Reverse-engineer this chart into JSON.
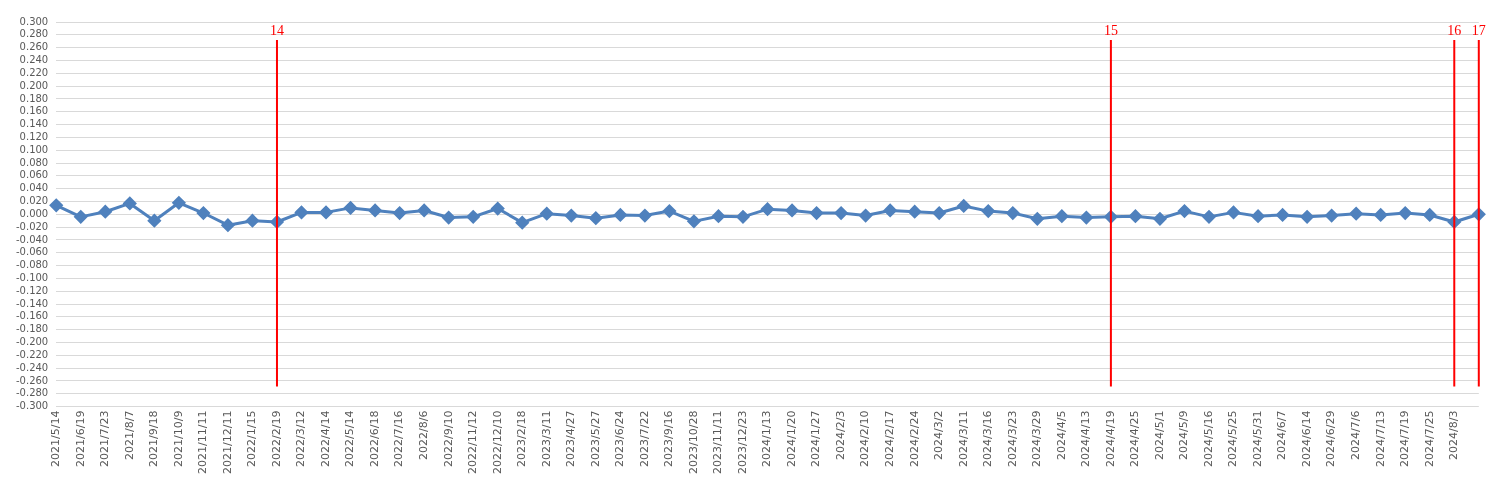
{
  "chart_data": {
    "type": "line",
    "categories": [
      "2021/5/14",
      "2021/6/19",
      "2021/7/23",
      "2021/8/7",
      "2021/9/18",
      "2021/10/9",
      "2021/11/11",
      "2021/12/11",
      "2022/1/15",
      "2022/2/19",
      "2022/3/12",
      "2022/4/14",
      "2022/5/14",
      "2022/6/18",
      "2022/7/16",
      "2022/8/6",
      "2022/9/10",
      "2022/11/12",
      "2022/12/10",
      "2023/2/18",
      "2023/3/11",
      "2023/4/27",
      "2023/5/27",
      "2023/6/24",
      "2023/7/22",
      "2023/9/16",
      "2023/10/28",
      "2023/11/11",
      "2023/12/23",
      "2024/1/13",
      "2024/1/20",
      "2024/1/27",
      "2024/2/3",
      "2024/2/10",
      "2024/2/17",
      "2024/2/24",
      "2024/3/2",
      "2024/3/11",
      "2024/3/16",
      "2024/3/23",
      "2024/3/29",
      "2024/4/5",
      "2024/4/13",
      "2024/4/19",
      "2024/4/25",
      "2024/5/1",
      "2024/5/9",
      "2024/5/16",
      "2024/5/25",
      "2024/5/31",
      "2024/6/7",
      "2024/6/14",
      "2024/6/29",
      "2024/7/6",
      "2024/7/13",
      "2024/7/19",
      "2024/7/25",
      "2024/8/3",
      null
    ],
    "series": [
      {
        "color": "#4f81bd",
        "values": [
          0.014,
          -0.004,
          0.004,
          0.017,
          -0.01,
          0.018,
          0.002,
          -0.017,
          -0.01,
          -0.012,
          0.003,
          0.003,
          0.01,
          0.006,
          0.002,
          0.006,
          -0.005,
          -0.004,
          0.009,
          -0.013,
          0.001,
          -0.002,
          -0.006,
          -0.001,
          -0.002,
          0.005,
          -0.011,
          -0.003,
          -0.004,
          0.008,
          0.006,
          0.002,
          0.002,
          -0.002,
          0.006,
          0.004,
          0.002,
          0.013,
          0.005,
          0.002,
          -0.007,
          -0.003,
          -0.005,
          -0.004,
          -0.003,
          -0.007,
          0.005,
          -0.004,
          0.003,
          -0.003,
          -0.001,
          -0.004,
          -0.002,
          0.001,
          -0.001,
          0.002,
          -0.001,
          -0.012,
          0.0
        ]
      }
    ],
    "ylim": [
      -0.3,
      0.3
    ],
    "yticks": [
      {
        "value": 0.3,
        "label": "0.300"
      },
      {
        "value": 0.28,
        "label": "0.280"
      },
      {
        "value": 0.26,
        "label": "0.260"
      },
      {
        "value": 0.24,
        "label": "0.240"
      },
      {
        "value": 0.22,
        "label": "0.220"
      },
      {
        "value": 0.2,
        "label": "0.200"
      },
      {
        "value": 0.18,
        "label": "0.180"
      },
      {
        "value": 0.16,
        "label": "0.160"
      },
      {
        "value": 0.14,
        "label": "0.140"
      },
      {
        "value": 0.12,
        "label": "0.120"
      },
      {
        "value": 0.1,
        "label": "0.100"
      },
      {
        "value": 0.08,
        "label": "0.080"
      },
      {
        "value": 0.06,
        "label": "0.060"
      },
      {
        "value": 0.04,
        "label": "0.040"
      },
      {
        "value": 0.02,
        "label": "0.020"
      },
      {
        "value": 0,
        "label": "0.000"
      },
      {
        "value": -0.02,
        "label": "-0.020"
      },
      {
        "value": -0.04,
        "label": "-0.040"
      },
      {
        "value": -0.06,
        "label": "-0.060"
      },
      {
        "value": -0.08,
        "label": "-0.080"
      },
      {
        "value": -0.1,
        "label": "-0.100"
      },
      {
        "value": -0.12,
        "label": "-0.120"
      },
      {
        "value": -0.14,
        "label": "-0.140"
      },
      {
        "value": -0.16,
        "label": "-0.160"
      },
      {
        "value": -0.18,
        "label": "-0.180"
      },
      {
        "value": -0.2,
        "label": "-0.200"
      },
      {
        "value": -0.22,
        "label": "-0.220"
      },
      {
        "value": -0.24,
        "label": "-0.240"
      },
      {
        "value": -0.26,
        "label": "-0.260"
      },
      {
        "value": -0.28,
        "label": "-0.280"
      },
      {
        "value": -0.3,
        "label": "-0.300"
      }
    ],
    "grid": "y",
    "legend": false,
    "marker": "diamond",
    "line_style": "solid",
    "ref_lines": [
      {
        "axis": "x",
        "value": "2022/2/19",
        "label": "14",
        "color": "#ff0000"
      },
      {
        "axis": "x",
        "value": "2024/4/19",
        "label": "15",
        "color": "#ff0000"
      },
      {
        "axis": "x",
        "value": "2024/8/3",
        "label": "16",
        "color": "#ff0000"
      },
      {
        "axis": "x",
        "value": null,
        "label": "17",
        "color": "#ff0000"
      }
    ]
  }
}
